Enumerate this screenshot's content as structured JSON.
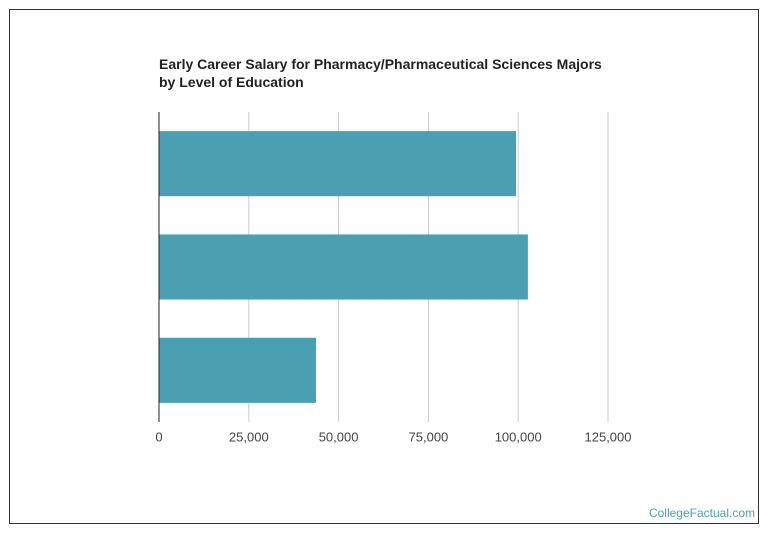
{
  "chart_data": {
    "type": "barh",
    "title": "Early Career Salary for Pharmacy/Pharmaceutical Sciences Majors by Level of Education",
    "source": "CollegeFactual.com",
    "categories": [
      null,
      null,
      null
    ],
    "values": [
      99400,
      102700,
      43700
    ],
    "color": "#4aa0b2",
    "xlim": [
      0,
      125000
    ],
    "xticks": [
      0,
      {
        "value": 25000,
        "label": "25,000"
      },
      {
        "value": 50000,
        "label": "50,000"
      },
      {
        "value": 75000,
        "label": "75,000"
      },
      {
        "value": 100000,
        "label": "100,000"
      },
      {
        "value": 125000,
        "label": "125,000"
      }
    ],
    "grid": true
  }
}
